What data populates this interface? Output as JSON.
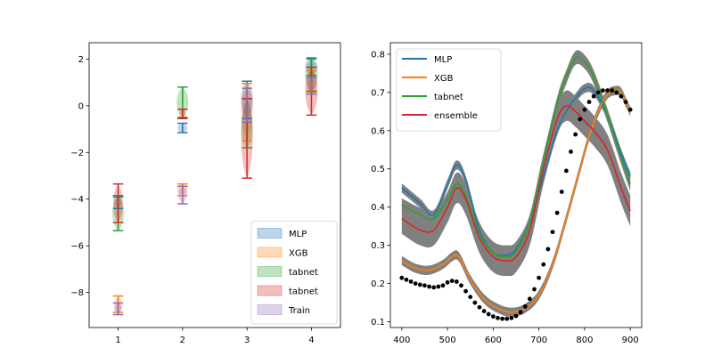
{
  "chart_data": [
    {
      "type": "violin",
      "xticks": [
        "1",
        "2",
        "3",
        "4"
      ],
      "yticks": [
        "2",
        "0",
        "−2",
        "−4",
        "−6",
        "−8"
      ],
      "xlim": [
        0.55,
        4.45
      ],
      "ylim": [
        -9.5,
        2.7
      ],
      "legend": {
        "placement": "lower right",
        "entries": [
          {
            "label": "MLP",
            "color": "#1f77b4"
          },
          {
            "label": "XGB",
            "color": "#ff7f0e"
          },
          {
            "label": "tabnet",
            "color": "#2ca02c"
          },
          {
            "label": "tabnet",
            "color": "#d62728"
          },
          {
            "label": "Train",
            "color": "#9467bd"
          }
        ]
      },
      "series": [
        {
          "name": "MLP",
          "color": "#1f77b4",
          "groups": [
            {
              "x": 1,
              "min": -4.4,
              "max": -3.9,
              "mid": -4.1,
              "width": 0.16
            },
            {
              "x": 2,
              "min": -1.15,
              "max": -0.75,
              "mid": -0.95,
              "width": 0.2
            },
            {
              "x": 3,
              "min": -0.55,
              "max": 1.05,
              "mid": 0.25,
              "width": 0.25
            },
            {
              "x": 4,
              "min": 1.3,
              "max": 2.05,
              "mid": 1.7,
              "width": 0.26
            }
          ]
        },
        {
          "name": "XGB",
          "color": "#ff7f0e",
          "groups": [
            {
              "x": 1,
              "min": -8.85,
              "max": -8.15,
              "mid": -8.55,
              "width": 0.16
            },
            {
              "x": 2,
              "min": -3.85,
              "max": -3.35,
              "mid": -3.6,
              "width": 0.22
            },
            {
              "x": 3,
              "min": -1.5,
              "max": 0.95,
              "mid": 0.2,
              "width": 0.24
            },
            {
              "x": 4,
              "min": 0.65,
              "max": 1.5,
              "mid": 1.05,
              "width": 0.22
            }
          ]
        },
        {
          "name": "tabnet",
          "color": "#2ca02c",
          "groups": [
            {
              "x": 1,
              "min": -5.35,
              "max": -3.85,
              "mid": -4.6,
              "width": 0.24
            },
            {
              "x": 2,
              "min": -0.5,
              "max": 0.8,
              "mid": 0.2,
              "width": 0.24
            },
            {
              "x": 3,
              "min": -1.8,
              "max": 0.3,
              "mid": -1.2,
              "width": 0.24
            },
            {
              "x": 4,
              "min": 0.6,
              "max": 2.0,
              "mid": 1.3,
              "width": 0.26
            }
          ]
        },
        {
          "name": "tabnet",
          "color": "#d62728",
          "groups": [
            {
              "x": 1,
              "min": -5.0,
              "max": -3.35,
              "mid": -4.25,
              "width": 0.2
            },
            {
              "x": 2,
              "min": -0.55,
              "max": -0.15,
              "mid": -0.35,
              "width": 0.14
            },
            {
              "x": 3,
              "min": -3.1,
              "max": 0.3,
              "mid": -1.3,
              "width": 0.24
            },
            {
              "x": 4,
              "min": -0.4,
              "max": 1.65,
              "mid": 0.6,
              "width": 0.26
            }
          ]
        },
        {
          "name": "Train",
          "color": "#9467bd",
          "groups": [
            {
              "x": 1,
              "min": -8.95,
              "max": -8.45,
              "mid": -8.65,
              "width": 0.16
            },
            {
              "x": 2,
              "min": -4.2,
              "max": -3.45,
              "mid": -3.75,
              "width": 0.18
            },
            {
              "x": 3,
              "min": -0.7,
              "max": 0.75,
              "mid": 0.1,
              "width": 0.2
            },
            {
              "x": 4,
              "min": 0.5,
              "max": 1.2,
              "mid": 0.85,
              "width": 0.18
            }
          ]
        }
      ]
    },
    {
      "type": "line",
      "xticks": [
        "400",
        "500",
        "600",
        "700",
        "800",
        "900"
      ],
      "yticks": [
        "0.8",
        "0.7",
        "0.6",
        "0.5",
        "0.4",
        "0.3",
        "0.2",
        "0.1"
      ],
      "xlim": [
        375,
        925
      ],
      "ylim": [
        0.085,
        0.83
      ],
      "legend": {
        "placement": "upper left",
        "entries": [
          {
            "label": "MLP",
            "color": "#1f77b4"
          },
          {
            "label": "XGB",
            "color": "#ff7f0e"
          },
          {
            "label": "tabnet",
            "color": "#2ca02c"
          },
          {
            "label": "ensemble",
            "color": "#d62728"
          }
        ]
      },
      "band_color": "#808080",
      "series": [
        {
          "name": "MLP",
          "color": "#1f77b4",
          "x": [
            400,
            440,
            470,
            500,
            520,
            540,
            570,
            600,
            630,
            650,
            680,
            710,
            740,
            760,
            780,
            800,
            820,
            850,
            880,
            900
          ],
          "y": [
            0.45,
            0.41,
            0.38,
            0.46,
            0.51,
            0.47,
            0.34,
            0.28,
            0.275,
            0.29,
            0.36,
            0.48,
            0.6,
            0.65,
            0.685,
            0.71,
            0.705,
            0.64,
            0.54,
            0.48
          ],
          "band": 0.012
        },
        {
          "name": "XGB",
          "color": "#ff7f0e",
          "x": [
            400,
            430,
            460,
            490,
            510,
            525,
            550,
            580,
            610,
            640,
            670,
            700,
            730,
            760,
            790,
            810,
            830,
            850,
            870,
            880,
            890,
            900
          ],
          "y": [
            0.26,
            0.24,
            0.235,
            0.25,
            0.27,
            0.27,
            0.21,
            0.16,
            0.135,
            0.125,
            0.135,
            0.17,
            0.25,
            0.37,
            0.5,
            0.585,
            0.65,
            0.695,
            0.705,
            0.7,
            0.675,
            0.65
          ],
          "band": 0.012
        },
        {
          "name": "tabnet",
          "color": "#2ca02c",
          "x": [
            400,
            440,
            470,
            500,
            520,
            540,
            570,
            600,
            630,
            650,
            680,
            710,
            740,
            760,
            780,
            800,
            820,
            850,
            880,
            900
          ],
          "y": [
            0.405,
            0.38,
            0.37,
            0.42,
            0.46,
            0.43,
            0.33,
            0.28,
            0.27,
            0.285,
            0.36,
            0.52,
            0.67,
            0.74,
            0.79,
            0.78,
            0.74,
            0.64,
            0.53,
            0.46
          ],
          "band": 0.018
        },
        {
          "name": "ensemble",
          "color": "#d62728",
          "x": [
            400,
            440,
            470,
            500,
            520,
            540,
            570,
            600,
            630,
            650,
            680,
            710,
            740,
            760,
            780,
            800,
            820,
            850,
            880,
            900
          ],
          "y": [
            0.37,
            0.34,
            0.34,
            0.4,
            0.45,
            0.42,
            0.32,
            0.27,
            0.26,
            0.27,
            0.34,
            0.5,
            0.63,
            0.665,
            0.65,
            0.625,
            0.6,
            0.55,
            0.45,
            0.39
          ],
          "band": 0.04
        }
      ],
      "reference_points": {
        "color": "#000000",
        "x": [
          400,
          410,
          420,
          430,
          440,
          450,
          460,
          470,
          480,
          490,
          500,
          510,
          520,
          530,
          540,
          550,
          560,
          570,
          580,
          590,
          600,
          610,
          620,
          630,
          640,
          650,
          660,
          670,
          680,
          690,
          700,
          710,
          720,
          730,
          740,
          750,
          760,
          770,
          780,
          790,
          800,
          810,
          820,
          830,
          840,
          850,
          860,
          870,
          880,
          890,
          900
        ],
        "y": [
          0.215,
          0.21,
          0.205,
          0.2,
          0.197,
          0.195,
          0.192,
          0.19,
          0.192,
          0.195,
          0.203,
          0.207,
          0.205,
          0.195,
          0.18,
          0.165,
          0.15,
          0.138,
          0.128,
          0.12,
          0.114,
          0.11,
          0.108,
          0.108,
          0.11,
          0.115,
          0.125,
          0.14,
          0.16,
          0.185,
          0.215,
          0.25,
          0.29,
          0.335,
          0.385,
          0.44,
          0.495,
          0.545,
          0.59,
          0.63,
          0.655,
          0.675,
          0.69,
          0.7,
          0.705,
          0.705,
          0.705,
          0.7,
          0.69,
          0.675,
          0.655
        ]
      }
    }
  ]
}
